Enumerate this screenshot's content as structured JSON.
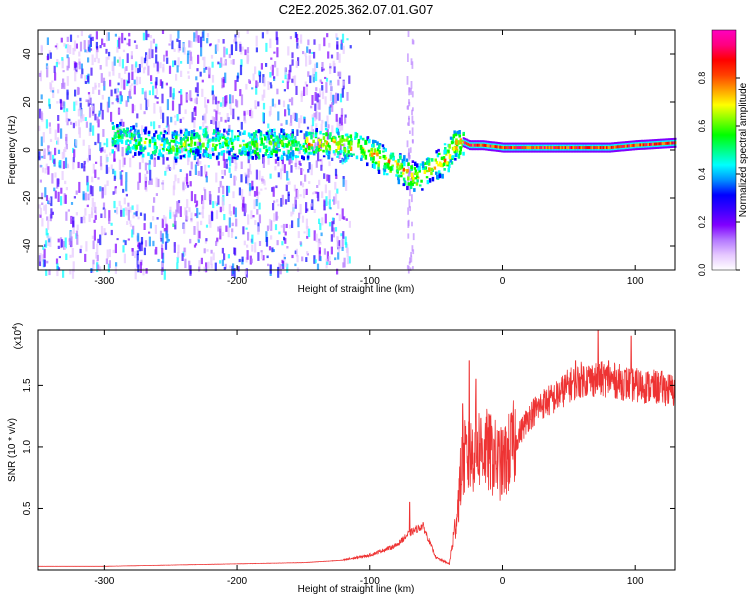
{
  "chart_data": [
    {
      "type": "heatmap",
      "title": "C2E2.2025.362.07.01.G07",
      "xlabel": "Height of straight line (km)",
      "ylabel": "Frequency (Hz)",
      "xlim": [
        -350,
        130
      ],
      "ylim": [
        -50,
        50
      ],
      "xticks": [
        -300,
        -200,
        -100,
        0,
        100
      ],
      "yticks": [
        -40,
        -20,
        0,
        20,
        40
      ],
      "colorbar": {
        "label": "Normalized spectral amplitude",
        "range": [
          0,
          1
        ],
        "ticks": [
          0.0,
          0.2,
          0.4,
          0.6,
          0.8
        ],
        "colors": [
          "#ffffff",
          "#e6c8ff",
          "#b478ff",
          "#8000ff",
          "#3c00ff",
          "#0000ff",
          "#0090ff",
          "#00ffff",
          "#00ff80",
          "#00ff00",
          "#80ff00",
          "#ffff00",
          "#ffa000",
          "#ff4000",
          "#ff0000",
          "#ff0080",
          "#ff00c0"
        ]
      },
      "ridge": {
        "x": [
          -290,
          -270,
          -250,
          -230,
          -200,
          -170,
          -150,
          -130,
          -110,
          -95,
          -80,
          -70,
          -62,
          -55,
          -48,
          -42,
          -38,
          -33,
          -25,
          -15,
          0,
          20,
          50,
          80,
          100,
          130
        ],
        "y": [
          6,
          4,
          2,
          4,
          3,
          3,
          3,
          4,
          2,
          -2,
          -6,
          -10,
          -11,
          -6,
          -5,
          -2,
          2,
          4,
          2,
          2,
          1,
          1,
          1,
          1,
          2,
          3
        ]
      }
    },
    {
      "type": "line",
      "xlabel": "Height of straight line (km)",
      "ylabel": "SNR (10 * v/v)",
      "scale_label": "(x10",
      "scale_exp": "4",
      "scale_close": ")",
      "xlim": [
        -350,
        130
      ],
      "ylim": [
        0,
        1.95
      ],
      "xticks": [
        -300,
        -200,
        -100,
        0,
        100
      ],
      "yticks": [
        0.5,
        1.0,
        1.5
      ],
      "ytick_labels": [
        "0.5",
        "1.0",
        "1.5"
      ],
      "color": "#ee3333",
      "envelope": {
        "x": [
          -350,
          -300,
          -200,
          -150,
          -120,
          -100,
          -80,
          -70,
          -60,
          -50,
          -40,
          -35,
          -30,
          -25,
          -20,
          -15,
          -10,
          -5,
          0,
          10,
          20,
          30,
          40,
          50,
          60,
          70,
          80,
          100,
          120,
          130
        ],
        "y": [
          0.03,
          0.03,
          0.05,
          0.06,
          0.08,
          0.12,
          0.2,
          0.3,
          0.36,
          0.1,
          0.05,
          0.4,
          0.9,
          0.9,
          1.0,
          1.0,
          0.95,
          0.9,
          0.85,
          1.05,
          1.25,
          1.35,
          1.4,
          1.5,
          1.55,
          1.55,
          1.55,
          1.5,
          1.48,
          1.45
        ]
      },
      "spikes": [
        {
          "x": -70,
          "y": 0.55
        },
        {
          "x": -30,
          "y": 1.35
        },
        {
          "x": -25,
          "y": 1.7
        },
        {
          "x": -20,
          "y": 1.55
        },
        {
          "x": 55,
          "y": 1.7
        },
        {
          "x": 72,
          "y": 1.95
        },
        {
          "x": 80,
          "y": 1.7
        },
        {
          "x": 97,
          "y": 1.9
        }
      ]
    }
  ]
}
